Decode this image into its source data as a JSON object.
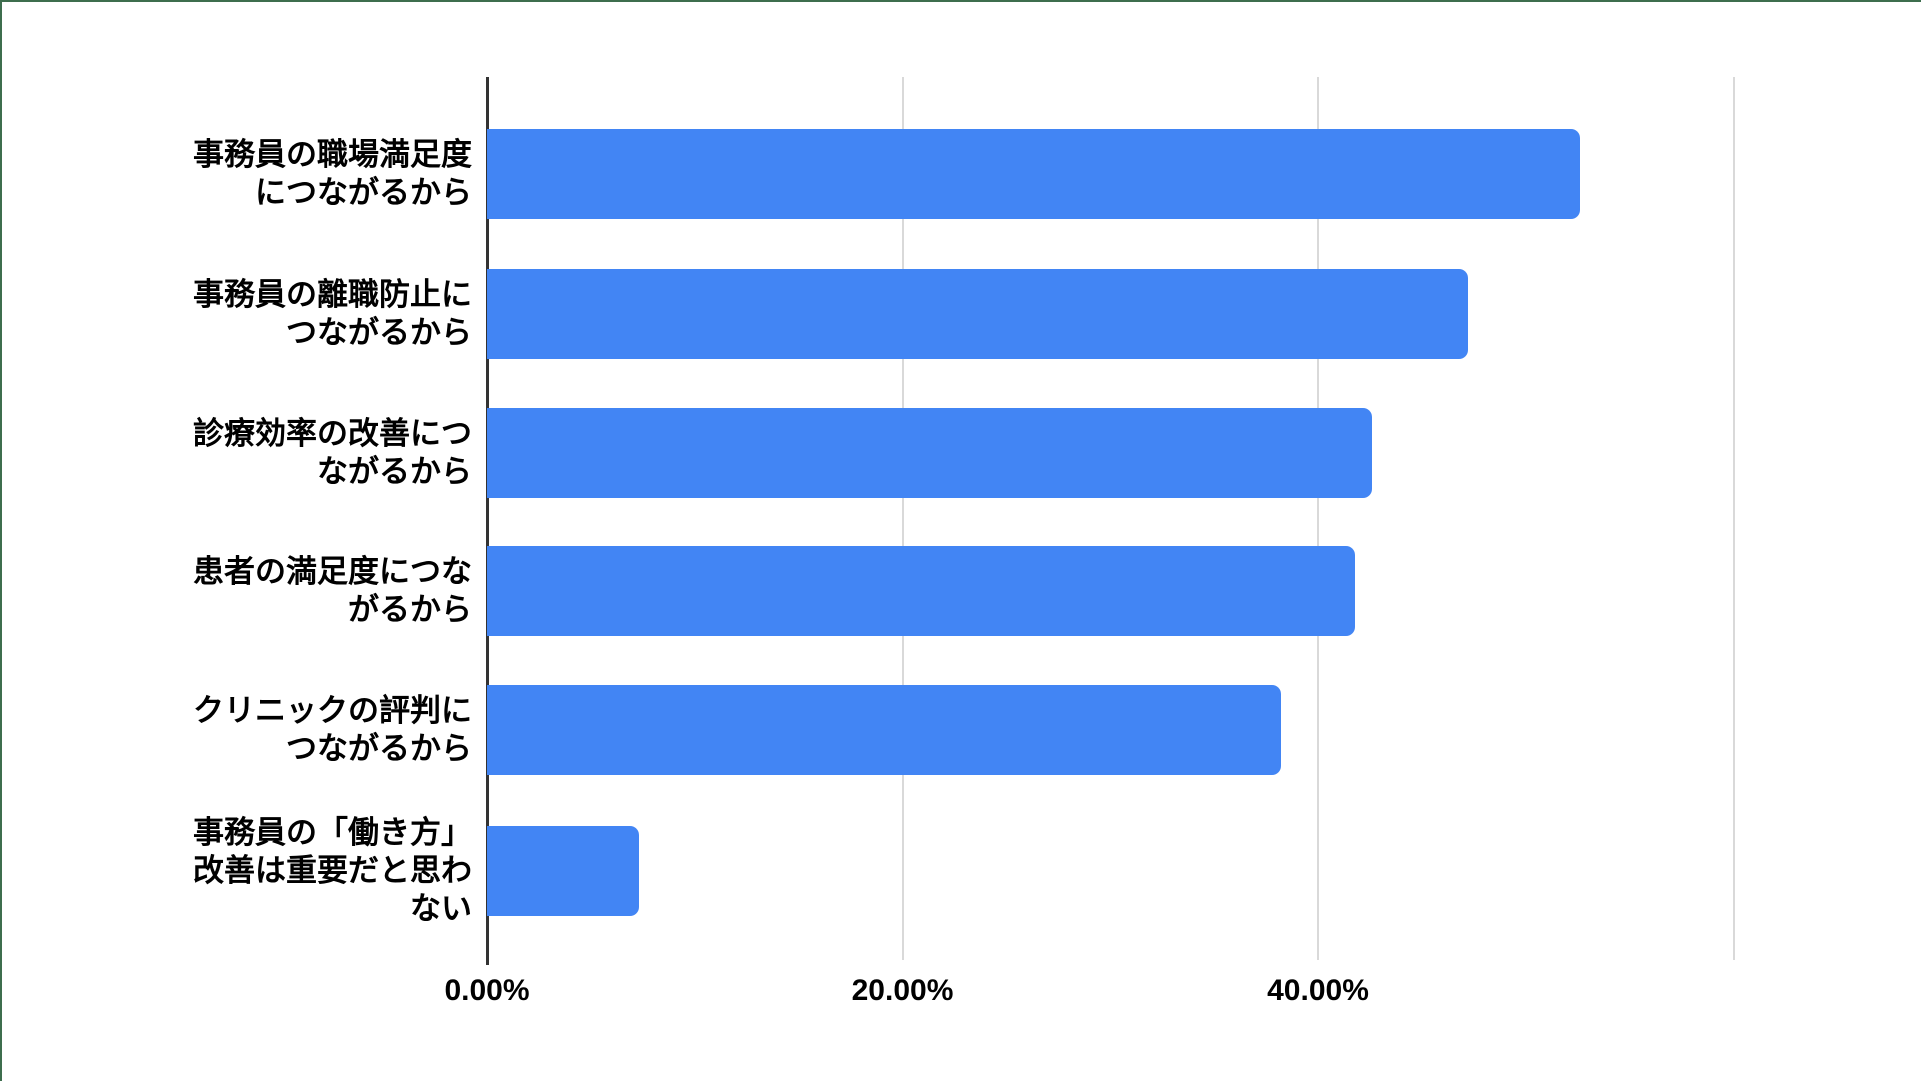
{
  "frame": {
    "background_color": "#FFFFFF",
    "border_color": "#3E6E4E"
  },
  "chart_data": {
    "type": "bar",
    "orientation": "horizontal",
    "title": "",
    "xlabel": "",
    "ylabel": "",
    "categories": [
      "事務員の職場満足度\nにつながるから",
      "事務員の離職防止に\nつながるから",
      "診療効率の改善につ\nながるから",
      "患者の満足度につな\nがるから",
      "クリニックの評判に\nつながるから",
      "事務員の「働き方」\n改善は重要だと思わ\nない"
    ],
    "values": [
      52.6,
      47.2,
      42.6,
      41.8,
      38.2,
      7.3
    ],
    "value_unit": "%",
    "xlim": [
      0,
      60
    ],
    "x_tick_labels": [
      "0.00%",
      "20.00%",
      "40.00%"
    ],
    "x_tick_percent": [
      0,
      20,
      40
    ],
    "x_gridlines_percent": [
      20,
      40,
      60
    ],
    "grid": true,
    "legend": false,
    "bar_color": "#4285F4",
    "gridline_color": "#D9D9D9",
    "axis_color": "#333333",
    "text_color": "#000000"
  }
}
